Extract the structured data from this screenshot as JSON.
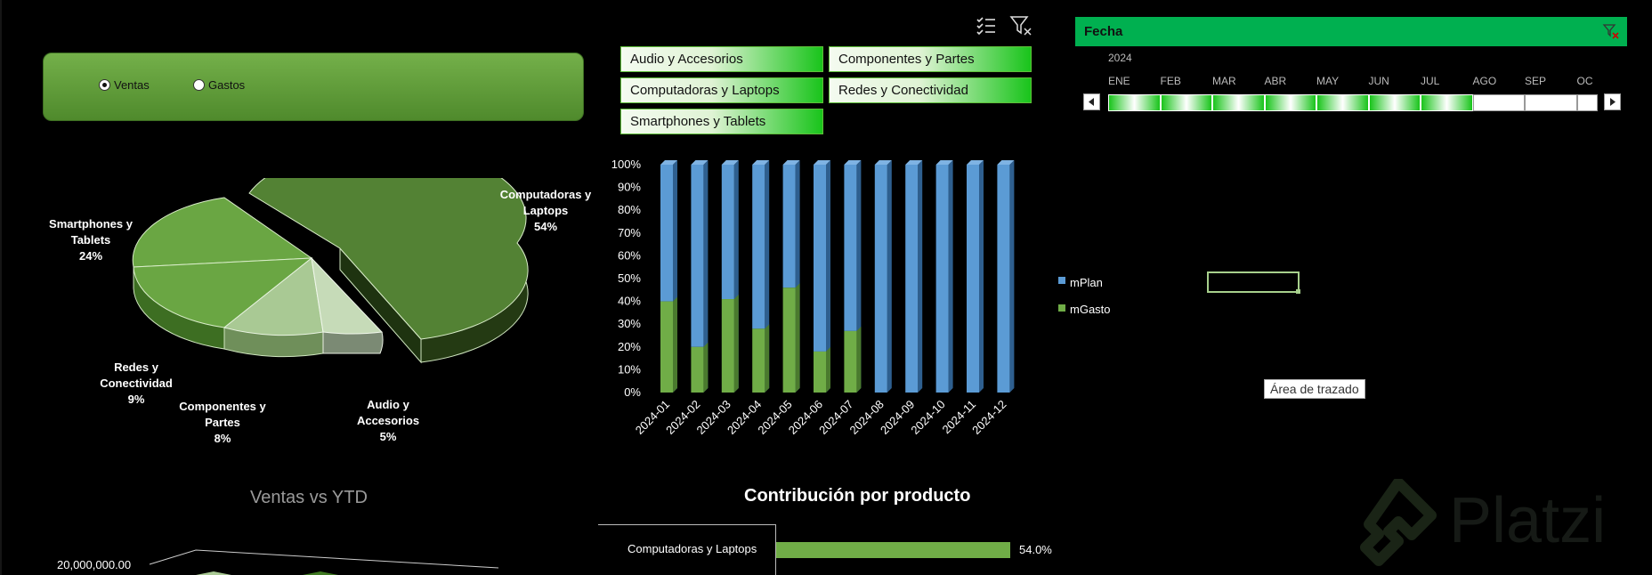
{
  "radio": {
    "options": [
      {
        "label": "Ventas",
        "selected": true
      },
      {
        "label": "Gastos",
        "selected": false
      }
    ]
  },
  "slicer": {
    "buttons": [
      "Audio y Accesorios",
      "Componentes y Partes",
      "Computadoras y Laptops",
      "Redes y Conectividad",
      "Smartphones y Tablets"
    ]
  },
  "timeline": {
    "title": "Fecha",
    "year": "2024",
    "months": [
      "ENE",
      "FEB",
      "MAR",
      "ABR",
      "MAY",
      "JUN",
      "JUL",
      "AGO",
      "SEP",
      "OC"
    ],
    "selected_months": 7
  },
  "pie": {
    "labels": [
      {
        "name_line1": "Computadoras y",
        "name_line2": "Laptops",
        "pct": "54%"
      },
      {
        "name_line1": "Smartphones y",
        "name_line2": "Tablets",
        "pct": "24%"
      },
      {
        "name_line1": "Redes y",
        "name_line2": "Conectividad",
        "pct": "9%"
      },
      {
        "name_line1": "Componentes y",
        "name_line2": "Partes",
        "pct": "8%"
      },
      {
        "name_line1": "Audio y",
        "name_line2": "Accesorios",
        "pct": "5%"
      }
    ]
  },
  "legend": {
    "plan": "mPlan",
    "gasto": "mGasto"
  },
  "tooltip": "Área de trazado",
  "bottom": {
    "ventas_title": "Ventas vs YTD",
    "ventas_axis": "20,000,000.00",
    "contrib_title": "Contribución por producto",
    "contrib_item": "Computadoras y Laptops",
    "contrib_value": "54.0%"
  },
  "watermark": "Platzi",
  "colors": {
    "plan": "#5b9bd5",
    "gasto": "#70ad47",
    "header": "#00b050"
  },
  "chart_data": [
    {
      "type": "pie",
      "title": "",
      "categories": [
        "Computadoras y Laptops",
        "Smartphones y Tablets",
        "Redes y Conectividad",
        "Componentes y Partes",
        "Audio y Accesorios"
      ],
      "values": [
        54,
        24,
        9,
        8,
        5
      ]
    },
    {
      "type": "bar",
      "stacked": true,
      "categories": [
        "2024-01",
        "2024-02",
        "2024-03",
        "2024-04",
        "2024-05",
        "2024-06",
        "2024-07",
        "2024-08",
        "2024-09",
        "2024-10",
        "2024-11",
        "2024-12"
      ],
      "series": [
        {
          "name": "mGasto",
          "values": [
            40,
            20,
            41,
            28,
            46,
            18,
            27,
            0,
            0,
            0,
            0,
            0
          ]
        },
        {
          "name": "mPlan",
          "values": [
            60,
            80,
            59,
            72,
            54,
            82,
            73,
            100,
            100,
            100,
            100,
            100
          ]
        }
      ],
      "yticks": [
        "0%",
        "10%",
        "20%",
        "30%",
        "40%",
        "50%",
        "60%",
        "70%",
        "80%",
        "90%",
        "100%"
      ],
      "ylim": [
        0,
        100
      ]
    },
    {
      "type": "bar",
      "orientation": "horizontal",
      "title": "Contribución por producto",
      "categories": [
        "Computadoras y Laptops"
      ],
      "values": [
        54.0
      ]
    }
  ]
}
